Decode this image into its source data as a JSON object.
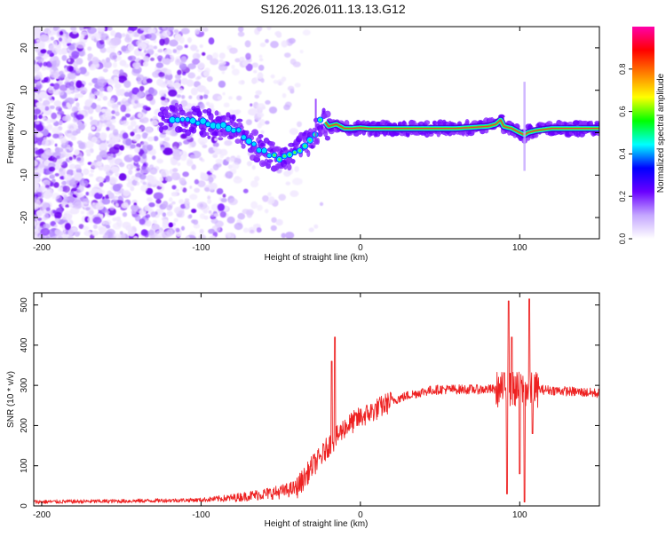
{
  "figure": {
    "title": "S126.2026.011.13.13.G12"
  },
  "chart_data": [
    {
      "type": "heatmap",
      "xlabel": "Height of straight line (km)",
      "ylabel": "Frequency (Hz)",
      "xlim": [
        -205,
        150
      ],
      "ylim": [
        -25,
        25
      ],
      "xticks": [
        -200,
        -100,
        0,
        100
      ],
      "yticks": [
        -20,
        -10,
        0,
        10,
        20
      ],
      "ridge": {
        "x": [
          -120,
          -110,
          -100,
          -95,
          -90,
          -85,
          -80,
          -75,
          -70,
          -65,
          -60,
          -55,
          -50,
          -45,
          -40,
          -35,
          -30,
          -27,
          -25,
          -22,
          -20,
          -15,
          -10,
          -5,
          0,
          5,
          10,
          20,
          40,
          60,
          80,
          85,
          88,
          90,
          95,
          100,
          103,
          105,
          110,
          120,
          150
        ],
        "y": [
          3.5,
          3.0,
          2.5,
          2.0,
          2.0,
          1.5,
          1.0,
          0.0,
          -2.0,
          -3.5,
          -4.5,
          -5.5,
          -6.2,
          -5.5,
          -4.5,
          -3.0,
          -1.5,
          0.5,
          3.0,
          2.5,
          1.5,
          2.0,
          1.0,
          1.0,
          1.2,
          1.0,
          1.0,
          1.0,
          1.0,
          1.0,
          1.5,
          2.0,
          3.0,
          1.5,
          1.0,
          0.0,
          -0.5,
          0.0,
          0.5,
          1.0,
          1.0
        ]
      },
      "colorbar": {
        "label": "Normalized spectral amplitude",
        "range": [
          0,
          1
        ],
        "ticks": [
          "0.0",
          "0.2",
          "0.4",
          "0.6",
          "0.8"
        ],
        "colors": [
          "#ffffff",
          "#c4a6ff",
          "#6a00ff",
          "#0000ff",
          "#00ffff",
          "#00ff00",
          "#ffff00",
          "#ff8000",
          "#ff0000",
          "#ff00aa"
        ]
      }
    },
    {
      "type": "line",
      "xlabel": "Height of straight line (km)",
      "ylabel": "SNR (10 * v/v)",
      "xlim": [
        -205,
        150
      ],
      "ylim": [
        0,
        530
      ],
      "xticks": [
        -200,
        -100,
        0,
        100
      ],
      "yticks": [
        0,
        100,
        200,
        300,
        400,
        500
      ],
      "color": "#ee2222",
      "trend": {
        "x": [
          -205,
          -150,
          -100,
          -80,
          -60,
          -50,
          -40,
          -35,
          -30,
          -25,
          -20,
          -15,
          -10,
          0,
          10,
          20,
          30,
          40,
          50,
          60,
          80,
          90,
          100,
          110,
          120,
          150
        ],
        "y": [
          10,
          12,
          15,
          20,
          30,
          35,
          45,
          70,
          100,
          120,
          150,
          170,
          195,
          220,
          240,
          262,
          275,
          285,
          290,
          290,
          290,
          290,
          290,
          290,
          288,
          280
        ]
      },
      "spikes": [
        {
          "x": -16,
          "y": 420
        },
        {
          "x": -18,
          "y": 360
        },
        {
          "x": 93,
          "y": 510
        },
        {
          "x": 92,
          "y": 30
        },
        {
          "x": 95,
          "y": 420
        },
        {
          "x": 100,
          "y": 80
        },
        {
          "x": 103,
          "y": 10
        },
        {
          "x": 106,
          "y": 515
        },
        {
          "x": 108,
          "y": 180
        }
      ]
    }
  ]
}
